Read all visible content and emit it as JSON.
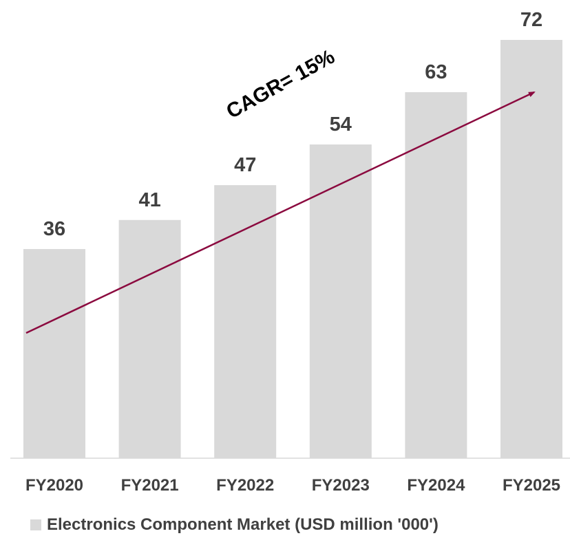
{
  "chart_data": {
    "type": "bar",
    "categories": [
      "FY2020",
      "FY2021",
      "FY2022",
      "FY2023",
      "FY2024",
      "FY2025"
    ],
    "series": [
      {
        "name": "Electronics Component Market (USD million '000')",
        "values": [
          36,
          41,
          47,
          54,
          63,
          72
        ]
      }
    ],
    "ylim": [
      0,
      72
    ],
    "grid": false,
    "legend_position": "bottom",
    "annotations": [
      {
        "text": "CAGR= 15%"
      }
    ],
    "colors": {
      "bar": "#d9d9d9",
      "arrow": "#8b0a3f",
      "label": "#404040"
    }
  }
}
